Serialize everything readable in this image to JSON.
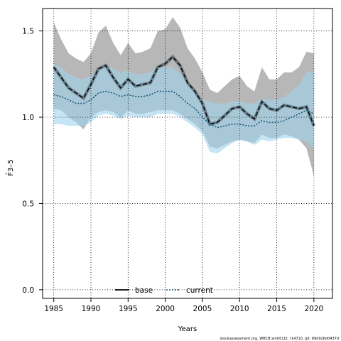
{
  "chart_data": {
    "type": "line",
    "xlabel": "Years",
    "ylabel": "F̄3–5",
    "xlim": [
      1983.5,
      2022.5
    ],
    "ylim": [
      -0.05,
      1.63
    ],
    "x_ticks": [
      1985,
      1990,
      1995,
      2000,
      2005,
      2010,
      2015,
      2020
    ],
    "x_tick_labels": [
      "1985",
      "1990",
      "1995",
      "2000",
      "2005",
      "2010",
      "2015",
      "2020"
    ],
    "y_ticks": [
      0.0,
      0.5,
      1.0,
      1.5
    ],
    "y_tick_labels": [
      "0.0",
      "0.5",
      "1.0",
      "1.5"
    ],
    "grid": "dotted",
    "legend_position": "bottom",
    "x": [
      1985,
      1986,
      1987,
      1988,
      1989,
      1990,
      1991,
      1992,
      1993,
      1994,
      1995,
      1996,
      1997,
      1998,
      1999,
      2000,
      2001,
      2002,
      2003,
      2004,
      2005,
      2006,
      2007,
      2008,
      2009,
      2010,
      2011,
      2012,
      2013,
      2014,
      2015,
      2016,
      2017,
      2018,
      2019,
      2020
    ],
    "series": [
      {
        "name": "base",
        "color": "#000000",
        "line_style": "solid",
        "values": [
          1.29,
          1.23,
          1.17,
          1.14,
          1.11,
          1.19,
          1.28,
          1.3,
          1.23,
          1.17,
          1.22,
          1.18,
          1.19,
          1.2,
          1.29,
          1.31,
          1.35,
          1.3,
          1.2,
          1.15,
          1.08,
          0.96,
          0.97,
          1.01,
          1.05,
          1.06,
          1.02,
          0.99,
          1.09,
          1.05,
          1.04,
          1.07,
          1.06,
          1.05,
          1.06,
          0.95
        ],
        "band_color": "#b3b3b3",
        "lower": [
          1.05,
          1.04,
          1.0,
          0.97,
          0.93,
          1.0,
          1.03,
          1.04,
          1.03,
          1.0,
          1.04,
          1.02,
          1.02,
          1.03,
          1.04,
          1.04,
          1.04,
          1.02,
          0.99,
          0.96,
          0.92,
          0.83,
          0.82,
          0.84,
          0.86,
          0.87,
          0.86,
          0.85,
          0.9,
          0.88,
          0.88,
          0.9,
          0.89,
          0.87,
          0.82,
          0.66
        ],
        "upper": [
          1.55,
          1.45,
          1.37,
          1.34,
          1.32,
          1.37,
          1.49,
          1.53,
          1.43,
          1.36,
          1.43,
          1.37,
          1.38,
          1.4,
          1.5,
          1.51,
          1.58,
          1.52,
          1.4,
          1.34,
          1.26,
          1.16,
          1.14,
          1.18,
          1.22,
          1.24,
          1.18,
          1.15,
          1.29,
          1.22,
          1.22,
          1.26,
          1.26,
          1.29,
          1.38,
          1.37
        ]
      },
      {
        "name": "current",
        "color": "#1b5a7a",
        "line_style": "dotted",
        "values": [
          1.13,
          1.12,
          1.1,
          1.08,
          1.08,
          1.1,
          1.14,
          1.15,
          1.14,
          1.12,
          1.13,
          1.12,
          1.12,
          1.13,
          1.15,
          1.15,
          1.15,
          1.12,
          1.08,
          1.05,
          1.0,
          0.96,
          0.94,
          0.95,
          0.96,
          0.96,
          0.95,
          0.95,
          0.98,
          0.97,
          0.97,
          0.98,
          1.0,
          1.02,
          1.04,
          1.02
        ],
        "band_color": "#9fd3ef",
        "lower": [
          0.96,
          0.96,
          0.95,
          0.95,
          0.95,
          0.97,
          1.01,
          1.02,
          1.01,
          0.99,
          1.01,
          1.0,
          1.0,
          1.0,
          1.02,
          1.02,
          1.02,
          1.0,
          0.97,
          0.94,
          0.9,
          0.8,
          0.79,
          0.82,
          0.85,
          0.87,
          0.86,
          0.84,
          0.87,
          0.86,
          0.87,
          0.88,
          0.88,
          0.87,
          0.86,
          0.82
        ],
        "upper": [
          1.31,
          1.29,
          1.25,
          1.23,
          1.22,
          1.24,
          1.28,
          1.3,
          1.28,
          1.26,
          1.27,
          1.25,
          1.25,
          1.26,
          1.29,
          1.29,
          1.29,
          1.25,
          1.2,
          1.15,
          1.1,
          1.09,
          1.08,
          1.08,
          1.09,
          1.09,
          1.08,
          1.08,
          1.11,
          1.1,
          1.1,
          1.12,
          1.15,
          1.19,
          1.26,
          1.27
        ]
      }
    ],
    "footer_note": "stockassessment.org, WBCB am001t2, r14710, git: 69d926d0437d"
  }
}
